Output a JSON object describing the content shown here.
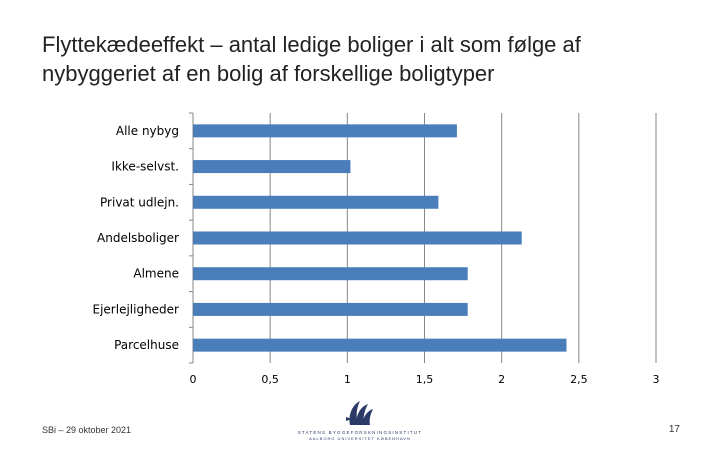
{
  "title": "Flyttekædeeffekt – antal ledige boliger i alt som følge af nybyggeriet af en bolig af forskellige boligtyper",
  "footer": {
    "left_text": "SBi – 29 oktober 2021",
    "page_number": "17",
    "logo_line1": "STATENS BYGGEFORSKNINGSINSTITUT",
    "logo_line2": "AALBORG UNIVERSITET KØBENHAVN"
  },
  "colors": {
    "bar": "#4a7ebb",
    "grid": "#878787",
    "axis": "#878787"
  },
  "chart_data": {
    "type": "bar",
    "orientation": "horizontal",
    "categories": [
      "Alle nybyg",
      "Ikke-selvst.",
      "Privat udlejn.",
      "Andelsboliger",
      "Almene",
      "Ejerlejligheder",
      "Parcelhuse"
    ],
    "values": [
      1.71,
      1.02,
      1.59,
      2.13,
      1.78,
      1.78,
      2.42
    ],
    "xlim": [
      0,
      3
    ],
    "xticks": [
      0,
      0.5,
      1,
      1.5,
      2,
      2.5,
      3
    ],
    "xtick_labels": [
      "0",
      "0,5",
      "1",
      "1,5",
      "2",
      "2,5",
      "3"
    ],
    "title": "",
    "xlabel": "",
    "ylabel": "",
    "grid": "vertical",
    "legend": "none"
  }
}
